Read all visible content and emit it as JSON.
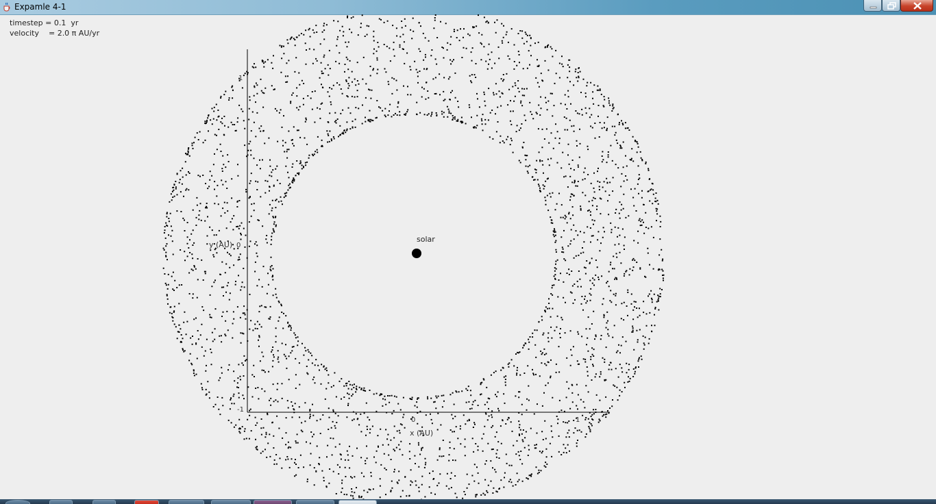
{
  "window": {
    "title": "Expamle 4-1"
  },
  "info": {
    "timestep": "timestep = 0.1  yr",
    "velocity": "velocity    = 2.0 π AU/yr"
  },
  "plot": {
    "sun_label": "solar",
    "x_axis_label": "x (AU)",
    "y_axis_label": "y (AU)",
    "x_ticks": [
      "0",
      "1"
    ],
    "y_ticks": [
      "1",
      "0",
      "-1"
    ]
  },
  "colors": {
    "dots": "#000000",
    "background": "#eeeeee"
  },
  "icons": {
    "app": "java-cup-icon",
    "minimize": "minimize-icon",
    "maximize": "restore-icon",
    "close": "close-icon"
  }
}
